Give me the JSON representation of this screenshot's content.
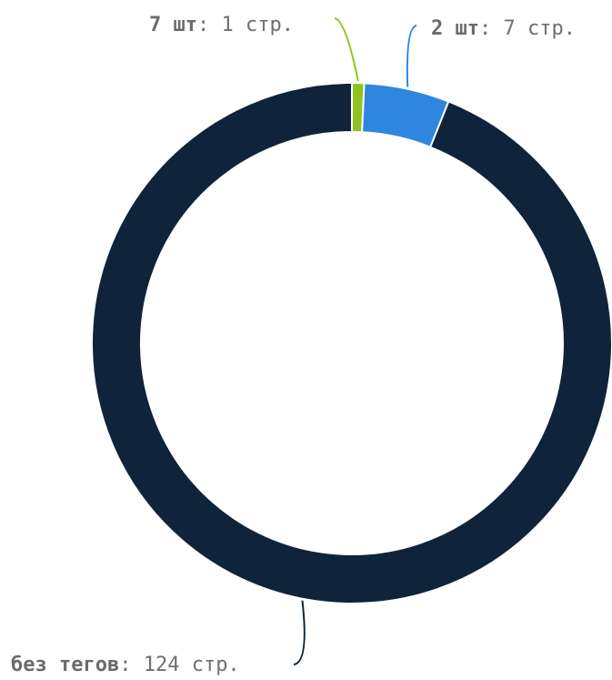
{
  "chart_data": {
    "type": "pie",
    "variant": "donut",
    "unit": "стр.",
    "slices": [
      {
        "label": "7 шт",
        "value": 1,
        "color": "#8fc31f"
      },
      {
        "label": "2 шт",
        "value": 7,
        "color": "#2e86de"
      },
      {
        "label": "без тегов",
        "value": 124,
        "color": "#0f233b"
      }
    ],
    "labels": [
      {
        "name": "7 шт",
        "value_text": "1 стр."
      },
      {
        "name": "2 шт",
        "value_text": "7 стр."
      },
      {
        "name": "без тегов",
        "value_text": "124 стр."
      }
    ],
    "start_angle_deg": 0,
    "direction": "clockwise",
    "separator_color": "#ffffff"
  }
}
